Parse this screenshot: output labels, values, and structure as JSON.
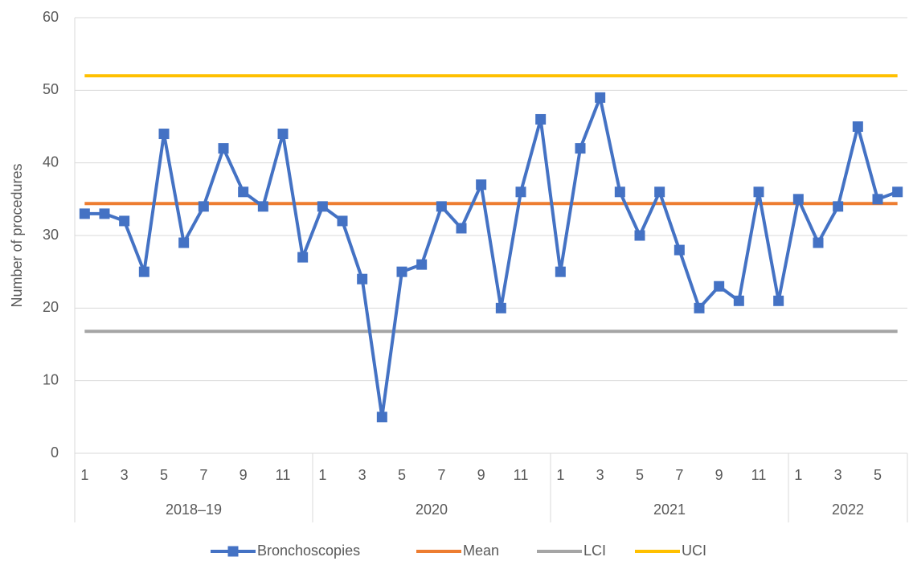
{
  "chart_data": {
    "type": "line",
    "y_label": "Number of procedures",
    "categories": [
      1,
      null,
      3,
      null,
      5,
      null,
      7,
      null,
      9,
      null,
      11,
      null,
      1,
      null,
      3,
      null,
      5,
      null,
      7,
      null,
      9,
      null,
      11,
      null,
      1,
      null,
      3,
      null,
      5,
      null,
      7,
      null,
      9,
      null,
      11,
      null,
      1,
      null,
      3,
      null,
      5,
      null
    ],
    "groups": [
      "2018–19",
      "2020",
      "2021",
      "2022"
    ],
    "series": [
      {
        "name": "Bronchoscopies",
        "color": "#4472c4",
        "marker": "square",
        "values": [
          33,
          33,
          32,
          25,
          44,
          29,
          34,
          42,
          36,
          34,
          44,
          27,
          34,
          32,
          24,
          5,
          25,
          26,
          34,
          31,
          37,
          20,
          36,
          46,
          25,
          42,
          49,
          36,
          30,
          36,
          28,
          20,
          23,
          21,
          36,
          21,
          35,
          29,
          34,
          45,
          35,
          36
        ]
      },
      {
        "name": "Mean",
        "color": "#ed7d31",
        "values": [
          34.4,
          34.4,
          34.4,
          34.4,
          34.4,
          34.4,
          34.4,
          34.4,
          34.4,
          34.4,
          34.4,
          34.4,
          34.4,
          34.4,
          34.4,
          34.4,
          34.4,
          34.4,
          34.4,
          34.4,
          34.4,
          34.4,
          34.4,
          34.4,
          34.4,
          34.4,
          34.4,
          34.4,
          34.4,
          34.4,
          34.4,
          34.4,
          34.4,
          34.4,
          34.4,
          34.4,
          34.4,
          34.4,
          34.4,
          34.4,
          34.4,
          34.4
        ]
      },
      {
        "name": "LCI",
        "color": "#a5a5a5",
        "values": [
          16.8,
          16.8,
          16.8,
          16.8,
          16.8,
          16.8,
          16.8,
          16.8,
          16.8,
          16.8,
          16.8,
          16.8,
          16.8,
          16.8,
          16.8,
          16.8,
          16.8,
          16.8,
          16.8,
          16.8,
          16.8,
          16.8,
          16.8,
          16.8,
          16.8,
          16.8,
          16.8,
          16.8,
          16.8,
          16.8,
          16.8,
          16.8,
          16.8,
          16.8,
          16.8,
          16.8,
          16.8,
          16.8,
          16.8,
          16.8,
          16.8,
          16.8
        ]
      },
      {
        "name": "UCI",
        "color": "#ffc000",
        "values": [
          52,
          52,
          52,
          52,
          52,
          52,
          52,
          52,
          52,
          52,
          52,
          52,
          52,
          52,
          52,
          52,
          52,
          52,
          52,
          52,
          52,
          52,
          52,
          52,
          52,
          52,
          52,
          52,
          52,
          52,
          52,
          52,
          52,
          52,
          52,
          52,
          52,
          52,
          52,
          52,
          52,
          52
        ]
      }
    ],
    "ylim": [
      0,
      60
    ],
    "yticks": [
      0,
      10,
      20,
      30,
      40,
      50,
      60
    ],
    "grid": true,
    "legend": "bottom"
  }
}
